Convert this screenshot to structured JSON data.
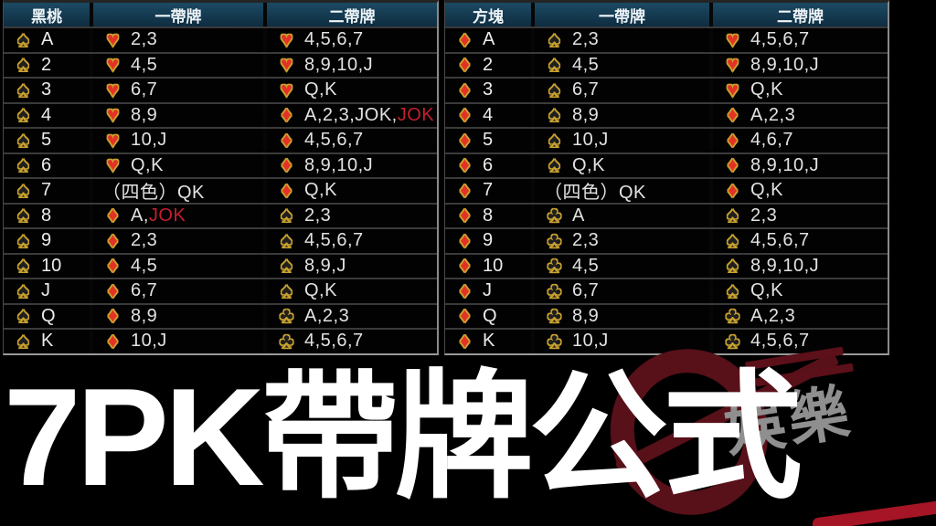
{
  "title": {
    "text": "7PK帶牌公式"
  },
  "watermark": {
    "text": "娛樂"
  },
  "colors": {
    "header_top": "#1c4a63",
    "header_bottom": "#0e2c40",
    "gold": "#c9a22d",
    "suit_red": "#e43126",
    "jok_red": "#c41f2f",
    "wm_red": "#581019",
    "wm_bright": "#a51525",
    "wm_gray": "#8f8f8f"
  },
  "tables": [
    {
      "name": "spade-combo-table",
      "rank_suit": "spade",
      "headers": [
        "黑桃",
        "一帶牌",
        "二帶牌"
      ],
      "rows": [
        {
          "rank": "A",
          "c1": {
            "suit": "heart",
            "text": "2,3"
          },
          "c2": {
            "suit": "heart",
            "text": "4,5,6,7"
          }
        },
        {
          "rank": "2",
          "c1": {
            "suit": "heart",
            "text": "4,5"
          },
          "c2": {
            "suit": "heart",
            "text": "8,9,10,J"
          }
        },
        {
          "rank": "3",
          "c1": {
            "suit": "heart",
            "text": "6,7"
          },
          "c2": {
            "suit": "heart",
            "text": "Q,K"
          }
        },
        {
          "rank": "4",
          "c1": {
            "suit": "heart",
            "text": "8,9"
          },
          "c2": {
            "suit": "diamond",
            "text": "A,2,3,JOK,",
            "red": "JOK"
          }
        },
        {
          "rank": "5",
          "c1": {
            "suit": "heart",
            "text": "10,J"
          },
          "c2": {
            "suit": "diamond",
            "text": "4,5,6,7"
          }
        },
        {
          "rank": "6",
          "c1": {
            "suit": "heart",
            "text": "Q,K"
          },
          "c2": {
            "suit": "diamond",
            "text": "8,9,10,J"
          }
        },
        {
          "rank": "7",
          "c1": {
            "suit": null,
            "text": "（四色）QK"
          },
          "c2": {
            "suit": "diamond",
            "text": "Q,K"
          }
        },
        {
          "rank": "8",
          "c1": {
            "suit": "diamond",
            "text": "A,",
            "red": "JOK"
          },
          "c2": {
            "suit": "spade",
            "text": "2,3"
          }
        },
        {
          "rank": "9",
          "c1": {
            "suit": "diamond",
            "text": "2,3"
          },
          "c2": {
            "suit": "spade",
            "text": "4,5,6,7"
          }
        },
        {
          "rank": "10",
          "c1": {
            "suit": "diamond",
            "text": "4,5"
          },
          "c2": {
            "suit": "spade",
            "text": "8,9,J"
          }
        },
        {
          "rank": "J",
          "c1": {
            "suit": "diamond",
            "text": "6,7"
          },
          "c2": {
            "suit": "spade",
            "text": "Q,K"
          }
        },
        {
          "rank": "Q",
          "c1": {
            "suit": "diamond",
            "text": "8,9"
          },
          "c2": {
            "suit": "club",
            "text": "A,2,3"
          }
        },
        {
          "rank": "K",
          "c1": {
            "suit": "diamond",
            "text": "10,J"
          },
          "c2": {
            "suit": "club",
            "text": "4,5,6,7"
          }
        }
      ]
    },
    {
      "name": "diamond-combo-table",
      "rank_suit": "diamond",
      "headers": [
        "方塊",
        "一帶牌",
        "二帶牌"
      ],
      "rows": [
        {
          "rank": "A",
          "c1": {
            "suit": "spade",
            "text": "2,3"
          },
          "c2": {
            "suit": "heart",
            "text": "4,5,6,7"
          }
        },
        {
          "rank": "2",
          "c1": {
            "suit": "spade",
            "text": "4,5"
          },
          "c2": {
            "suit": "heart",
            "text": "8,9,10,J"
          }
        },
        {
          "rank": "3",
          "c1": {
            "suit": "spade",
            "text": "6,7"
          },
          "c2": {
            "suit": "heart",
            "text": "Q,K"
          }
        },
        {
          "rank": "4",
          "c1": {
            "suit": "spade",
            "text": "8,9"
          },
          "c2": {
            "suit": "diamond",
            "text": "A,2,3"
          }
        },
        {
          "rank": "5",
          "c1": {
            "suit": "spade",
            "text": "10,J"
          },
          "c2": {
            "suit": "diamond",
            "text": "4,6,7"
          }
        },
        {
          "rank": "6",
          "c1": {
            "suit": "spade",
            "text": "Q,K"
          },
          "c2": {
            "suit": "diamond",
            "text": "8,9,10,J"
          }
        },
        {
          "rank": "7",
          "c1": {
            "suit": null,
            "text": "（四色）QK"
          },
          "c2": {
            "suit": "diamond",
            "text": "Q,K"
          }
        },
        {
          "rank": "8",
          "c1": {
            "suit": "club",
            "text": "A"
          },
          "c2": {
            "suit": "spade",
            "text": "2,3"
          }
        },
        {
          "rank": "9",
          "c1": {
            "suit": "club",
            "text": "2,3"
          },
          "c2": {
            "suit": "spade",
            "text": "4,5,6,7"
          }
        },
        {
          "rank": "10",
          "c1": {
            "suit": "club",
            "text": "4,5"
          },
          "c2": {
            "suit": "spade",
            "text": "8,9,10,J"
          }
        },
        {
          "rank": "J",
          "c1": {
            "suit": "club",
            "text": "6,7"
          },
          "c2": {
            "suit": "spade",
            "text": "Q,K"
          }
        },
        {
          "rank": "Q",
          "c1": {
            "suit": "club",
            "text": "8,9"
          },
          "c2": {
            "suit": "club",
            "text": "A,2,3"
          }
        },
        {
          "rank": "K",
          "c1": {
            "suit": "club",
            "text": "10,J"
          },
          "c2": {
            "suit": "club",
            "text": "4,5,6,7"
          }
        }
      ]
    }
  ]
}
